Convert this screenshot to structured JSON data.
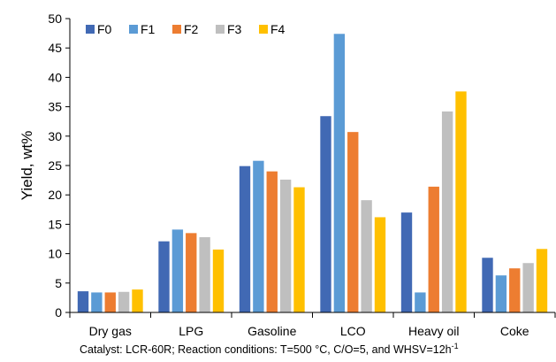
{
  "chart_data": {
    "type": "bar",
    "categories": [
      "Dry gas",
      "LPG",
      "Gasoline",
      "LCO",
      "Heavy oil",
      "Coke"
    ],
    "series": [
      {
        "name": "F0",
        "color": "#4169b4",
        "values": [
          3.6,
          12.1,
          24.9,
          33.4,
          17.0,
          9.3
        ]
      },
      {
        "name": "F1",
        "color": "#5b9bd5",
        "values": [
          3.4,
          14.1,
          25.8,
          47.4,
          3.4,
          6.3
        ]
      },
      {
        "name": "F2",
        "color": "#ed7d31",
        "values": [
          3.4,
          13.5,
          24.0,
          30.7,
          21.4,
          7.5
        ]
      },
      {
        "name": "F3",
        "color": "#bfbfbf",
        "values": [
          3.5,
          12.8,
          22.6,
          19.1,
          34.2,
          8.4
        ]
      },
      {
        "name": "F4",
        "color": "#ffc000",
        "values": [
          3.9,
          10.7,
          21.3,
          16.2,
          37.6,
          10.8
        ]
      }
    ],
    "ylabel": "Yield, wt%",
    "xlabel": "",
    "ylim": [
      0,
      50
    ],
    "yticks": [
      "0",
      "5",
      "10",
      "15",
      "20",
      "25",
      "30",
      "35",
      "40",
      "45",
      "50"
    ],
    "grid": false,
    "legend_position": "top-left",
    "caption": "Catalyst: LCR-60R; Reaction conditions: T=500 °C, C/O=5, and WHSV=12h",
    "caption_superscript": "-1"
  }
}
